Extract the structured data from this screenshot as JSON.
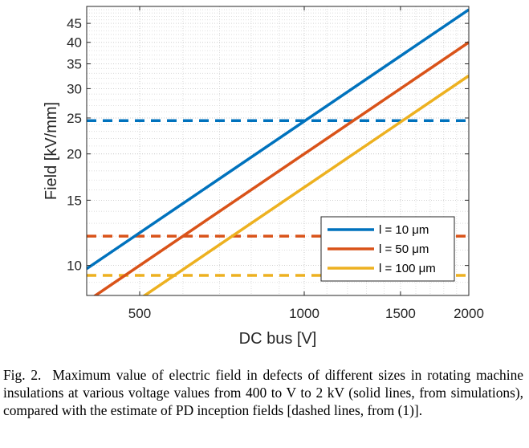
{
  "chart_data": {
    "type": "line",
    "xlabel": "DC bus [V]",
    "ylabel": "Field [kV/mm]",
    "xscale": "log",
    "yscale": "log",
    "xlim": [
      400,
      2000
    ],
    "ylim": [
      8.3,
      50
    ],
    "xticks": [
      500,
      1000,
      1500,
      2000
    ],
    "yticks": [
      10,
      15,
      20,
      25,
      30,
      35,
      40,
      45
    ],
    "grid": true,
    "legend_position": "bottom-right",
    "series": [
      {
        "name": "l = 10 μm",
        "style": "solid",
        "color": "#0072BD",
        "x": [
          400,
          2000
        ],
        "y": [
          9.8,
          49
        ]
      },
      {
        "name": "l = 50 μm",
        "style": "solid",
        "color": "#D95319",
        "x": [
          400,
          2000
        ],
        "y": [
          8.0,
          40
        ]
      },
      {
        "name": "l = 100 μm",
        "style": "solid",
        "color": "#EDB120",
        "x": [
          400,
          2000
        ],
        "y": [
          6.5,
          32.5
        ]
      }
    ],
    "reference_lines": [
      {
        "style": "dashed",
        "color": "#0072BD",
        "y": 24.6
      },
      {
        "style": "dashed",
        "color": "#D95319",
        "y": 12.0
      },
      {
        "style": "dashed",
        "color": "#EDB120",
        "y": 9.4
      }
    ]
  },
  "caption": {
    "figno": "Fig. 2.",
    "text": "Maximum value of electric field in defects of different sizes in rotating machine insulations at various voltage values from 400 to V to 2 kV (solid lines, from simulations), compared with the estimate of PD inception fields [dashed lines, from (1)]."
  }
}
